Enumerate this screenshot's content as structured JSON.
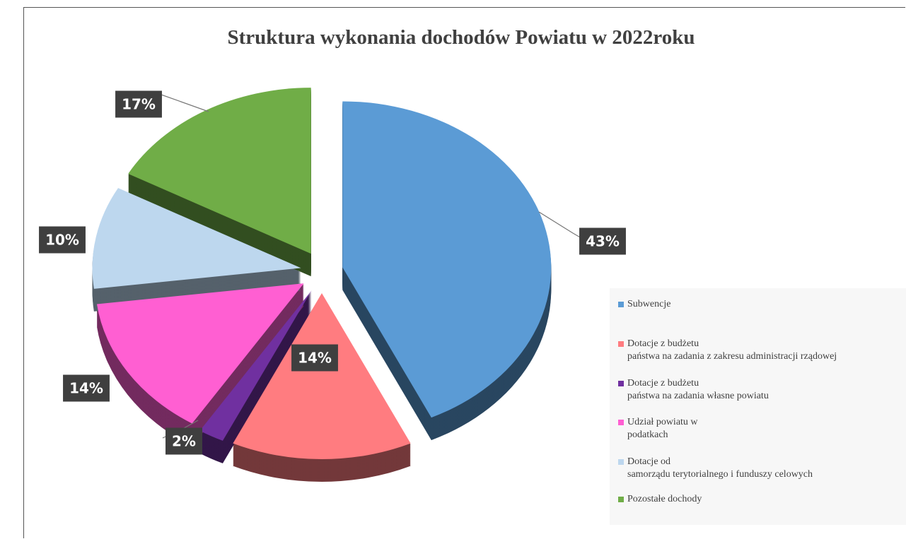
{
  "chart_data": {
    "type": "pie",
    "title": "Struktura wykonania dochodów Powiatu w 2022roku",
    "categories": [
      "Subwencje",
      "Dotacje z budżetu\npaństwa na zadania z zakresu administracji rządowej",
      "Dotacje z budżetu\npaństwa na zadania własne powiatu",
      "Udział powiatu w\npodatkach",
      "Dotacje od\nsamorządu terytorialnego i funduszy celowych",
      "Pozostałe dochody"
    ],
    "values": [
      43,
      14,
      2,
      14,
      10,
      17
    ],
    "value_labels": [
      "43%",
      "14%",
      "2%",
      "14%",
      "10%",
      "17%"
    ],
    "colors": [
      "#5b9bd5",
      "#ff7c80",
      "#7030a0",
      "#ff5fd2",
      "#bdd7ee",
      "#70ad47"
    ]
  }
}
